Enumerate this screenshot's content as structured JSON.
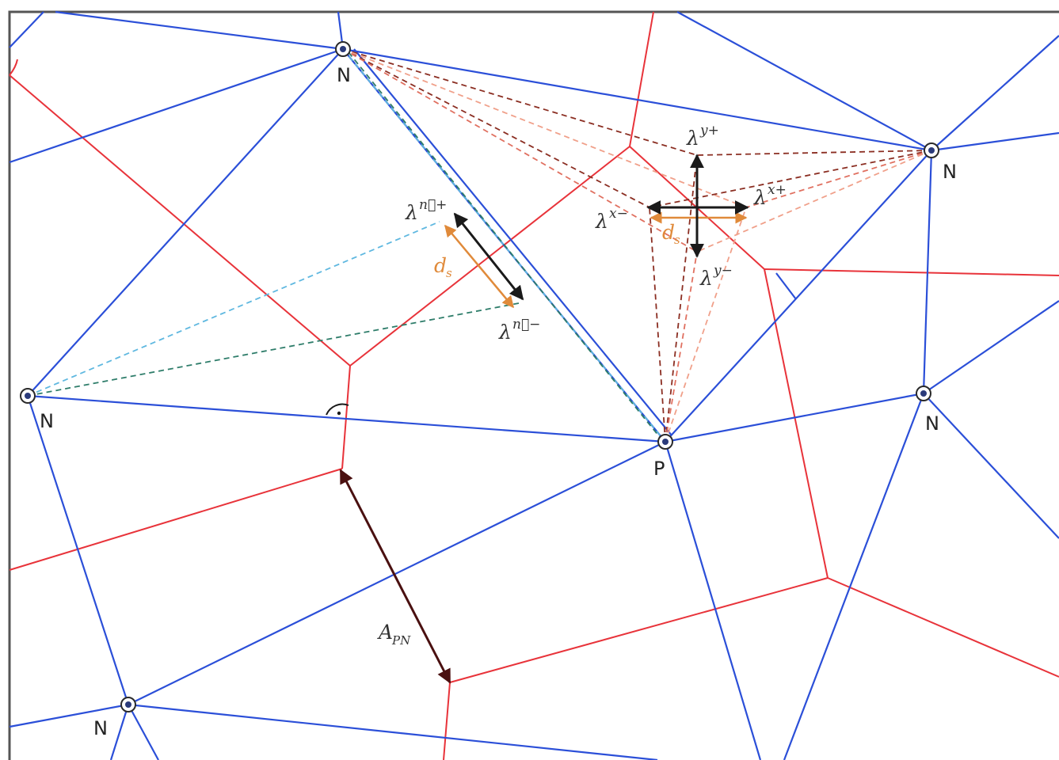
{
  "node_labels": {
    "p": "P",
    "n_top": "N",
    "n_right_top": "N",
    "n_left": "N",
    "n_right_mid": "N",
    "n_bottom_left": "N"
  },
  "labels": {
    "lambda": "λ",
    "n_plus": "n⃗+",
    "n_minus": "n⃗−",
    "x_plus": "x+",
    "x_minus": "x−",
    "y_plus": "y+",
    "y_minus": "y−",
    "ds_d": "d",
    "ds_sub": "s",
    "apn_a": "A",
    "apn_sub": "PN"
  },
  "colors": {
    "delaunay": "#2b4fd8",
    "voronoi": "#e8333a",
    "ds_arrow": "#e08a3a",
    "lambda_arrow": "#1a1a1a",
    "apn_arrow": "#5a1a1a"
  }
}
